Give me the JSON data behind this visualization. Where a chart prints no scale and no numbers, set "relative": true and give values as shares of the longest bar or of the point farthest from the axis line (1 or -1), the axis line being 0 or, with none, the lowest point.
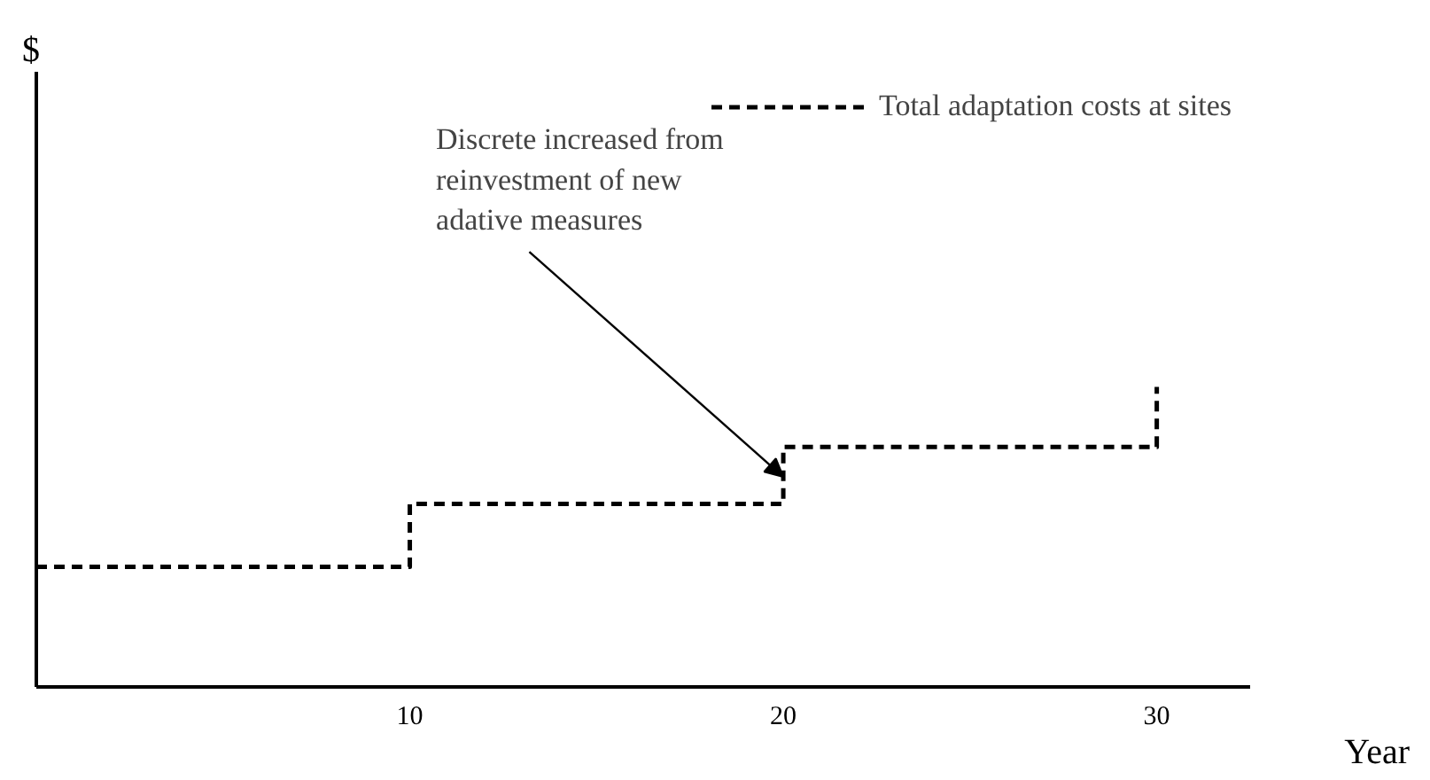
{
  "chart_data": {
    "type": "step",
    "xlabel": "Year",
    "relative": true,
    "x": [
      0,
      10,
      20,
      30
    ],
    "xlim": [
      0,
      32.5
    ],
    "xticks": [
      10,
      20,
      30
    ],
    "series": [
      {
        "name": "Total adaptation costs at sites",
        "color": "#000000",
        "values": [
          0.4,
          0.61,
          0.8,
          1.0
        ]
      }
    ],
    "annotations": [
      {
        "text": "Discrete increased from\nreinvestment of new\nadative measures",
        "x": 20,
        "y": 0.7
      },
      "$"
    ],
    "line_style": "dashed",
    "marker": "none",
    "grid": false,
    "legend": "top right"
  }
}
